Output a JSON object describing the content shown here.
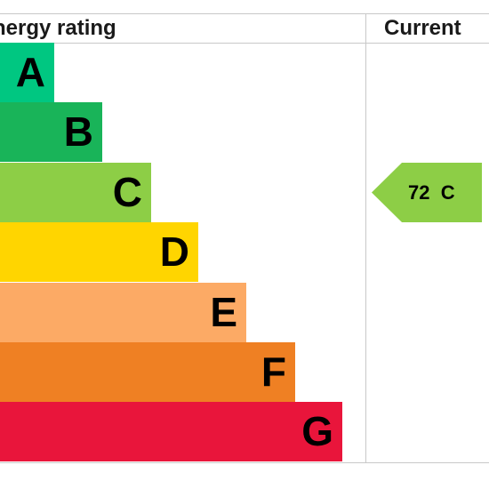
{
  "header": {
    "rating_title": "Energy rating",
    "current_title": "Current"
  },
  "chart_data": {
    "type": "bar",
    "orientation": "horizontal",
    "categories": [
      "A",
      "B",
      "C",
      "D",
      "E",
      "F",
      "G"
    ],
    "colors": [
      "#00c781",
      "#19b459",
      "#8dce46",
      "#ffd500",
      "#fcaa65",
      "#ef8023",
      "#e9153b"
    ],
    "current": {
      "value": 72,
      "band": "C",
      "label": "72  C",
      "color": "#8dce46"
    }
  }
}
